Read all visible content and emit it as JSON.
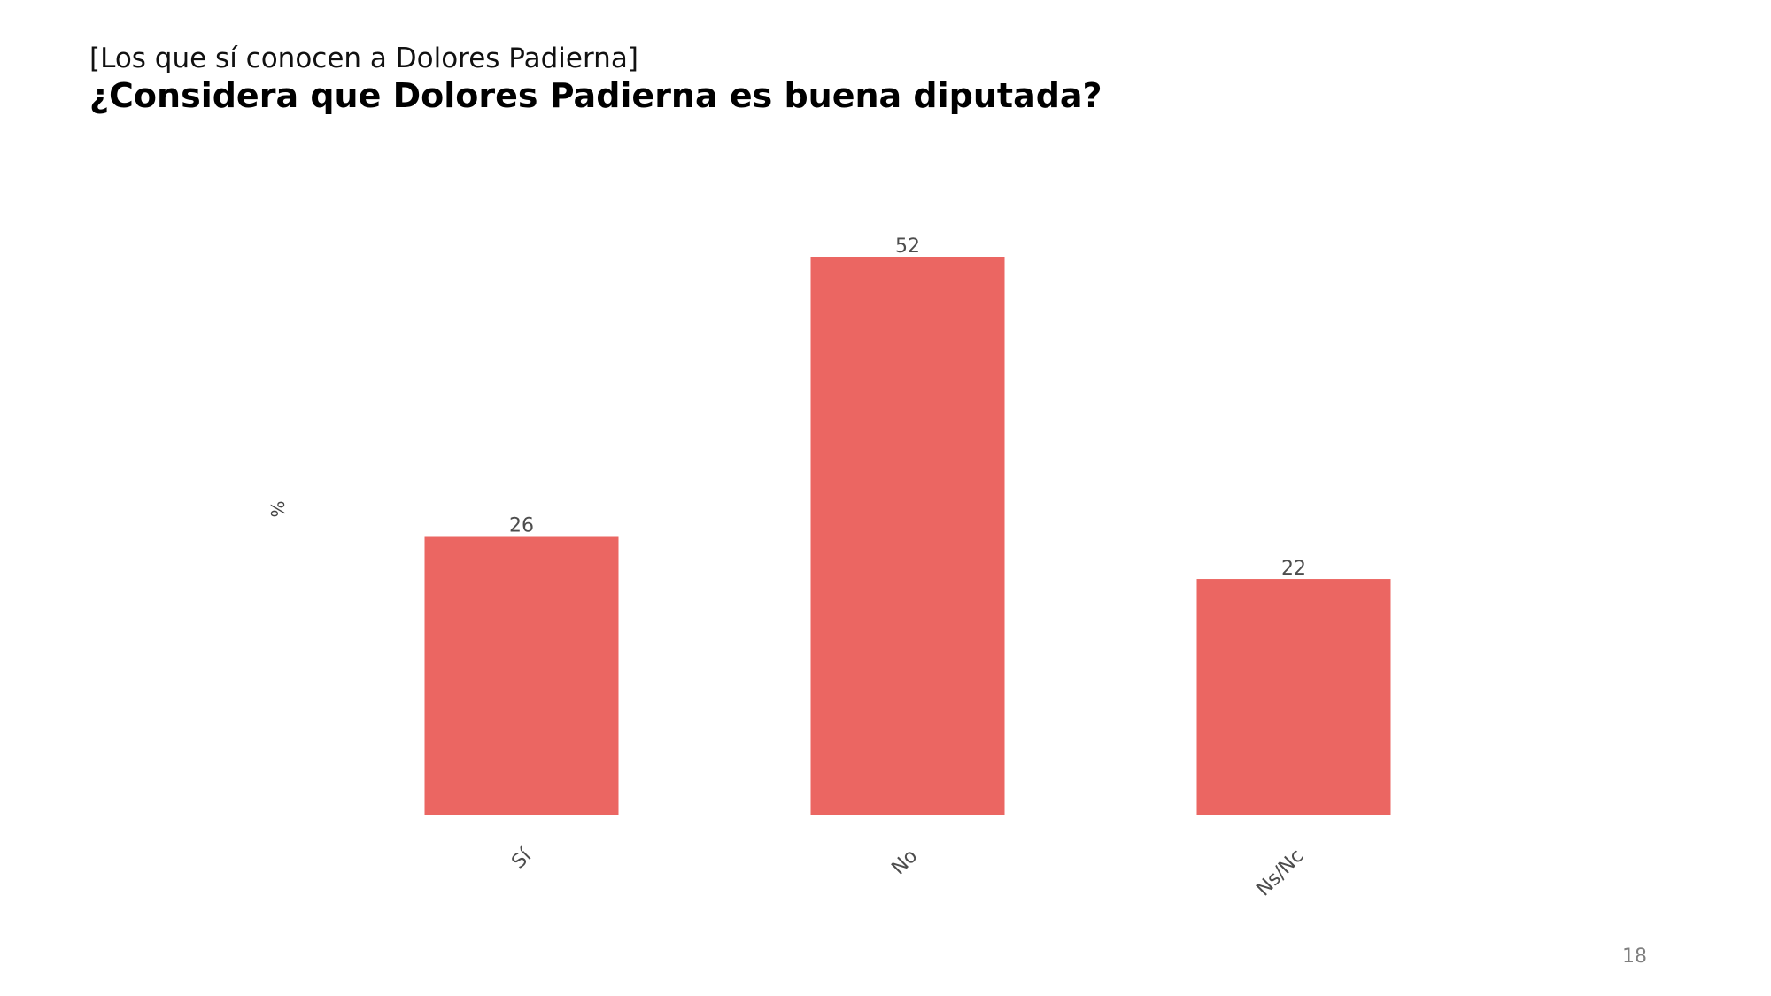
{
  "page": {
    "subtitle": "[Los que sí conocen a Dolores Padierna]",
    "title": "¿Considera que Dolores Padierna es buena diputada?",
    "page_number": "18"
  },
  "chart_data": {
    "type": "bar",
    "categories": [
      "Sí",
      "No",
      "Ns/Nc"
    ],
    "values": [
      26,
      52,
      22
    ],
    "data_labels": [
      "26",
      "52",
      "22"
    ],
    "ylabel": "%",
    "xlabel": "",
    "ylim": [
      0,
      52
    ],
    "grid": false,
    "legend": "none",
    "bar_color": "#EB6662"
  }
}
